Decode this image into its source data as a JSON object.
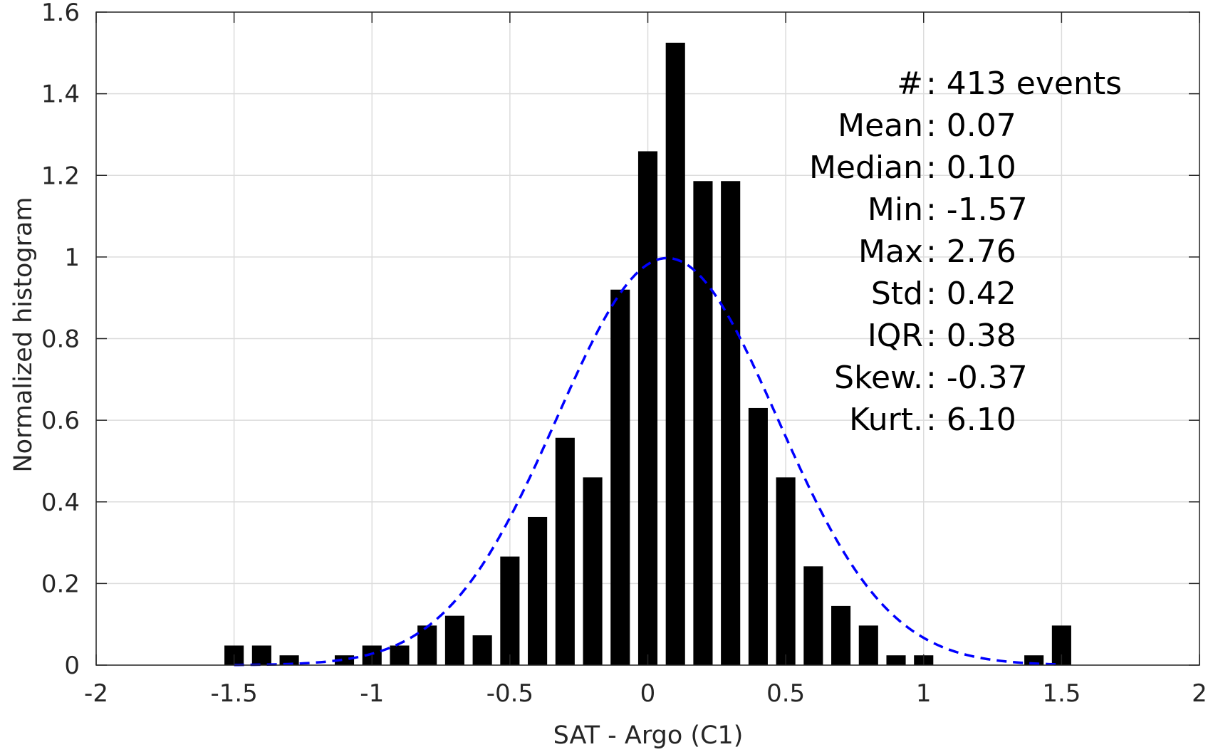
{
  "chart_data": {
    "type": "bar",
    "title": "",
    "xlabel": "SAT - Argo (C1)",
    "ylabel": "Normalized histogram",
    "xlim": [
      -2,
      2
    ],
    "ylim": [
      0,
      1.6
    ],
    "grid": true,
    "x_ticks": [
      "-2",
      "-1.5",
      "-1",
      "-0.5",
      "0",
      "0.5",
      "1",
      "1.5",
      "2"
    ],
    "y_ticks": [
      "0",
      "0.2",
      "0.4",
      "0.6",
      "0.8",
      "1",
      "1.2",
      "1.4",
      "1.6"
    ],
    "bin_width": 0.1,
    "bar_color": "#000000",
    "bars": [
      {
        "x": -1.5,
        "y": 0.048
      },
      {
        "x": -1.4,
        "y": 0.048
      },
      {
        "x": -1.3,
        "y": 0.024
      },
      {
        "x": -1.1,
        "y": 0.024
      },
      {
        "x": -1.0,
        "y": 0.048
      },
      {
        "x": -0.9,
        "y": 0.048
      },
      {
        "x": -0.8,
        "y": 0.097
      },
      {
        "x": -0.7,
        "y": 0.121
      },
      {
        "x": -0.6,
        "y": 0.073
      },
      {
        "x": -0.5,
        "y": 0.266
      },
      {
        "x": -0.4,
        "y": 0.363
      },
      {
        "x": -0.3,
        "y": 0.557
      },
      {
        "x": -0.2,
        "y": 0.46
      },
      {
        "x": -0.1,
        "y": 0.92
      },
      {
        "x": 0.0,
        "y": 1.259
      },
      {
        "x": 0.1,
        "y": 1.525
      },
      {
        "x": 0.2,
        "y": 1.186
      },
      {
        "x": 0.3,
        "y": 1.186
      },
      {
        "x": 0.4,
        "y": 0.63
      },
      {
        "x": 0.5,
        "y": 0.46
      },
      {
        "x": 0.6,
        "y": 0.242
      },
      {
        "x": 0.7,
        "y": 0.145
      },
      {
        "x": 0.8,
        "y": 0.097
      },
      {
        "x": 0.9,
        "y": 0.024
      },
      {
        "x": 1.0,
        "y": 0.024
      },
      {
        "x": 1.4,
        "y": 0.024
      },
      {
        "x": 1.5,
        "y": 0.097
      }
    ],
    "fit_curve": {
      "style": "dashed",
      "color": "#0000ff",
      "mean": 0.07,
      "std": 0.4,
      "x_range": [
        -1.5,
        1.5
      ]
    },
    "stats": [
      {
        "label": "#  ",
        "value": ": 413 events"
      },
      {
        "label": "Mean ",
        "value": ": 0.07"
      },
      {
        "label": "Median ",
        "value": ": 0.10"
      },
      {
        "label": "Min ",
        "value": ": -1.57"
      },
      {
        "label": "Max ",
        "value": ": 2.76"
      },
      {
        "label": "Std ",
        "value": ": 0.42"
      },
      {
        "label": "IQR ",
        "value": ": 0.38"
      },
      {
        "label": "Skew. ",
        "value": ": -0.37"
      },
      {
        "label": "Kurt. ",
        "value": ": 6.10"
      }
    ]
  }
}
